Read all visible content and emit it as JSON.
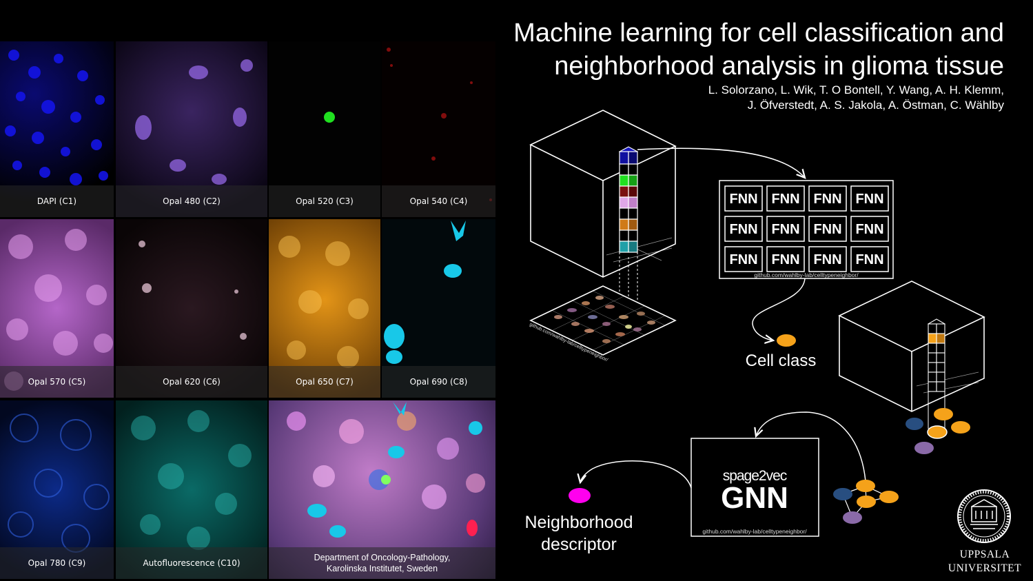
{
  "title_line1": "Machine learning for cell classification and",
  "title_line2": "neighborhood analysis in glioma tissue",
  "authors_line1": "L. Solorzano, L. Wik, T. O Bontell, Y. Wang, A. H. Klemm,",
  "authors_line2": "J. Öfverstedt, A. S. Jakola, A. Östman, C. Wählby",
  "channels": [
    {
      "label": "DAPI (C1)",
      "color": "#1a1aff"
    },
    {
      "label": "Opal 480 (C2)",
      "color": "#9b6cf0"
    },
    {
      "label": "Opal 520 (C3)",
      "color": "#20e020"
    },
    {
      "label": "Opal 540 (C4)",
      "color": "#c01010"
    },
    {
      "label": "Opal 570 (C5)",
      "color": "#d27ee0"
    },
    {
      "label": "Opal 620 (C6)",
      "color": "#c8a0b0"
    },
    {
      "label": "Opal 650 (C7)",
      "color": "#e39417"
    },
    {
      "label": "Opal 690 (C8)",
      "color": "#18c8e8"
    },
    {
      "label": "Opal 780 (C9)",
      "color": "#1a44c8"
    },
    {
      "label": "Autofluorescence (C10)",
      "color": "#20b0a8"
    }
  ],
  "composite_caption_line1": "Department of Oncology-Pathology,",
  "composite_caption_line2": "Karolinska Institutet, Sweden",
  "fnn_label": "FNN",
  "repo_url": "github.com/wahlby-lab/celltypeneighbor/",
  "cell_class_label": "Cell class",
  "gnn_subtitle": "spage2vec",
  "gnn_title": "GNN",
  "neighborhood_line1": "Neighborhood",
  "neighborhood_line2": "descriptor",
  "university_line1": "UPPSALA",
  "university_line2": "UNIVERSITET",
  "colors": {
    "cell_class": "#f5a21a",
    "neighborhood": "#ff00ee",
    "node_dark_blue": "#284e80",
    "node_purple": "#8a6aa8"
  }
}
